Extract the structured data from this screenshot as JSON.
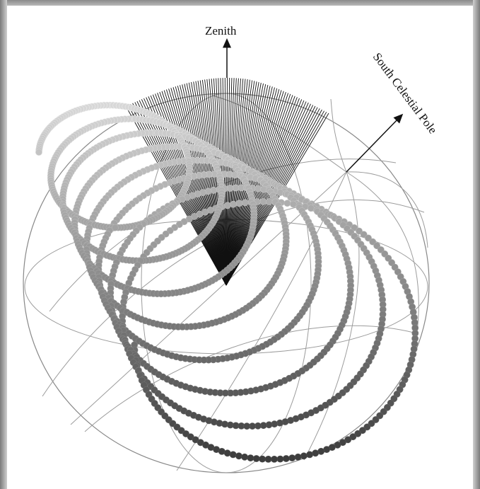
{
  "diagram": {
    "labels": {
      "zenith": "Zenith",
      "south_celestial_pole": "South Celestial Pole"
    },
    "colors": {
      "background": "#ffffff",
      "frame": "#9a9a9a",
      "sphere_lines": "#9c9c9c",
      "cone_lines": "#111111",
      "arrow": "#111111",
      "beads_light": "#e3e3e3",
      "beads_dark": "#3a3a3a"
    }
  }
}
